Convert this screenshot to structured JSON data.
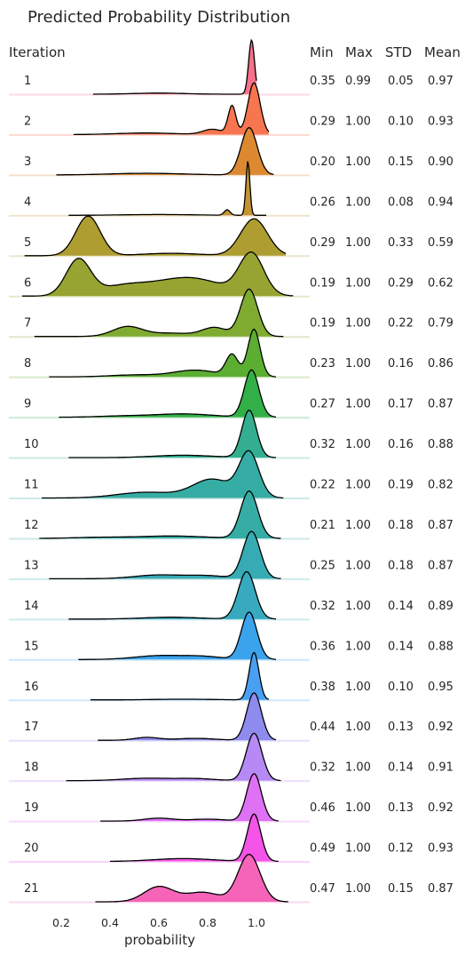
{
  "chart_data": {
    "type": "ridgeline",
    "title": "Predicted Probability Distribution",
    "xlabel": "probability",
    "xlim": [
      0.05,
      1.15
    ],
    "xticks": [
      "0.2",
      "0.4",
      "0.6",
      "0.8",
      "1.0"
    ],
    "xtick_values": [
      0.2,
      0.4,
      0.6,
      0.8,
      1.0
    ],
    "row_header": "Iteration",
    "stat_headers": [
      "Min",
      "Max",
      "STD",
      "Mean"
    ],
    "series": [
      {
        "name": "1",
        "color": "#f77189",
        "min": "0.35",
        "max": "0.99",
        "std": "0.05",
        "mean": "0.97",
        "range": [
          0.33,
          1.0
        ],
        "peak": 0.98,
        "comps": [
          [
            0.98,
            0.012,
            1.0
          ],
          [
            0.6,
            0.1,
            0.02
          ]
        ]
      },
      {
        "name": "2",
        "color": "#f7754f",
        "min": "0.29",
        "max": "1.00",
        "std": "0.10",
        "mean": "0.93",
        "range": [
          0.25,
          1.05
        ],
        "peak": 0.94,
        "comps": [
          [
            0.99,
            0.025,
            1.0
          ],
          [
            0.9,
            0.016,
            0.55
          ],
          [
            0.82,
            0.04,
            0.1
          ],
          [
            0.55,
            0.12,
            0.03
          ]
        ]
      },
      {
        "name": "3",
        "color": "#dc8932",
        "min": "0.20",
        "max": "1.00",
        "std": "0.15",
        "mean": "0.90",
        "range": [
          0.18,
          1.07
        ],
        "peak": 0.86,
        "comps": [
          [
            0.97,
            0.033,
            1.0
          ],
          [
            0.55,
            0.15,
            0.035
          ]
        ]
      },
      {
        "name": "4",
        "color": "#c39532",
        "min": "0.26",
        "max": "1.00",
        "std": "0.08",
        "mean": "0.94",
        "range": [
          0.23,
          1.04
        ],
        "peak": 0.98,
        "comps": [
          [
            0.965,
            0.008,
            1.0
          ],
          [
            0.88,
            0.012,
            0.1
          ],
          [
            0.6,
            0.15,
            0.015
          ]
        ]
      },
      {
        "name": "5",
        "color": "#ae9d31",
        "min": "0.29",
        "max": "1.00",
        "std": "0.33",
        "mean": "0.59",
        "range": [
          0.05,
          1.12
        ],
        "peak": 0.72,
        "comps": [
          [
            0.31,
            0.05,
            1.0
          ],
          [
            0.99,
            0.055,
            0.93
          ],
          [
            0.65,
            0.12,
            0.06
          ]
        ]
      },
      {
        "name": "6",
        "color": "#97a431",
        "min": "0.19",
        "max": "1.00",
        "std": "0.29",
        "mean": "0.62",
        "range": [
          0.04,
          1.15
        ],
        "peak": 0.8,
        "comps": [
          [
            0.27,
            0.05,
            0.88
          ],
          [
            0.98,
            0.05,
            1.0
          ],
          [
            0.72,
            0.14,
            0.45
          ],
          [
            0.45,
            0.1,
            0.22
          ]
        ]
      },
      {
        "name": "7",
        "color": "#7fab31",
        "min": "0.19",
        "max": "1.00",
        "std": "0.22",
        "mean": "0.79",
        "range": [
          0.09,
          1.11
        ],
        "peak": 0.86,
        "comps": [
          [
            0.97,
            0.035,
            1.0
          ],
          [
            0.47,
            0.06,
            0.2
          ],
          [
            0.83,
            0.05,
            0.18
          ],
          [
            0.65,
            0.1,
            0.07
          ]
        ]
      },
      {
        "name": "8",
        "color": "#5cae32",
        "min": "0.23",
        "max": "1.00",
        "std": "0.16",
        "mean": "0.86",
        "range": [
          0.15,
          1.08
        ],
        "peak": 0.86,
        "comps": [
          [
            0.99,
            0.025,
            1.0
          ],
          [
            0.9,
            0.025,
            0.45
          ],
          [
            0.75,
            0.09,
            0.14
          ],
          [
            0.5,
            0.1,
            0.04
          ]
        ]
      },
      {
        "name": "9",
        "color": "#32b047",
        "min": "0.27",
        "max": "1.00",
        "std": "0.17",
        "mean": "0.87",
        "range": [
          0.19,
          1.08
        ],
        "peak": 0.86,
        "comps": [
          [
            0.98,
            0.03,
            1.0
          ],
          [
            0.7,
            0.12,
            0.07
          ],
          [
            0.45,
            0.1,
            0.025
          ]
        ]
      },
      {
        "name": "10",
        "color": "#34ae91",
        "min": "0.32",
        "max": "1.00",
        "std": "0.16",
        "mean": "0.88",
        "range": [
          0.23,
          1.08
        ],
        "peak": 0.86,
        "comps": [
          [
            0.97,
            0.03,
            1.0
          ],
          [
            0.7,
            0.12,
            0.05
          ]
        ]
      },
      {
        "name": "11",
        "color": "#36ada4",
        "min": "0.22",
        "max": "1.00",
        "std": "0.19",
        "mean": "0.82",
        "range": [
          0.12,
          1.11
        ],
        "peak": 0.86,
        "comps": [
          [
            0.97,
            0.04,
            1.0
          ],
          [
            0.82,
            0.08,
            0.42
          ],
          [
            0.55,
            0.12,
            0.13
          ]
        ]
      },
      {
        "name": "12",
        "color": "#36ada4",
        "min": "0.21",
        "max": "1.00",
        "std": "0.18",
        "mean": "0.87",
        "range": [
          0.11,
          1.1
        ],
        "peak": 0.86,
        "comps": [
          [
            0.97,
            0.035,
            1.0
          ],
          [
            0.65,
            0.14,
            0.05
          ],
          [
            0.35,
            0.1,
            0.02
          ]
        ]
      },
      {
        "name": "13",
        "color": "#37abb4",
        "min": "0.25",
        "max": "1.00",
        "std": "0.18",
        "mean": "0.87",
        "range": [
          0.15,
          1.1
        ],
        "peak": 0.86,
        "comps": [
          [
            0.98,
            0.035,
            1.0
          ],
          [
            0.6,
            0.1,
            0.08
          ],
          [
            0.8,
            0.08,
            0.06
          ]
        ]
      },
      {
        "name": "14",
        "color": "#38aabf",
        "min": "0.32",
        "max": "1.00",
        "std": "0.14",
        "mean": "0.89",
        "range": [
          0.23,
          1.08
        ],
        "peak": 0.86,
        "comps": [
          [
            0.96,
            0.035,
            1.0
          ],
          [
            0.65,
            0.12,
            0.04
          ]
        ]
      },
      {
        "name": "15",
        "color": "#3ba3ec",
        "min": "0.36",
        "max": "1.00",
        "std": "0.14",
        "mean": "0.88",
        "range": [
          0.27,
          1.08
        ],
        "peak": 0.86,
        "comps": [
          [
            0.97,
            0.032,
            1.0
          ],
          [
            0.6,
            0.1,
            0.08
          ],
          [
            0.78,
            0.08,
            0.06
          ]
        ]
      },
      {
        "name": "16",
        "color": "#4a9ff2",
        "min": "0.38",
        "max": "1.00",
        "std": "0.10",
        "mean": "0.95",
        "range": [
          0.32,
          1.05
        ],
        "peak": 0.86,
        "comps": [
          [
            0.99,
            0.02,
            1.0
          ],
          [
            0.7,
            0.12,
            0.015
          ]
        ]
      },
      {
        "name": "17",
        "color": "#8f8bee",
        "min": "0.44",
        "max": "1.00",
        "std": "0.13",
        "mean": "0.92",
        "range": [
          0.35,
          1.08
        ],
        "peak": 0.86,
        "comps": [
          [
            0.99,
            0.03,
            1.0
          ],
          [
            0.55,
            0.05,
            0.06
          ],
          [
            0.75,
            0.08,
            0.04
          ]
        ]
      },
      {
        "name": "18",
        "color": "#b689f4",
        "min": "0.32",
        "max": "1.00",
        "std": "0.14",
        "mean": "0.91",
        "range": [
          0.22,
          1.1
        ],
        "peak": 0.86,
        "comps": [
          [
            0.99,
            0.032,
            1.0
          ],
          [
            0.55,
            0.1,
            0.05
          ],
          [
            0.75,
            0.08,
            0.04
          ]
        ]
      },
      {
        "name": "19",
        "color": "#df71f4",
        "min": "0.46",
        "max": "1.00",
        "std": "0.13",
        "mean": "0.92",
        "range": [
          0.36,
          1.09
        ],
        "peak": 0.86,
        "comps": [
          [
            0.99,
            0.03,
            1.0
          ],
          [
            0.6,
            0.06,
            0.06
          ],
          [
            0.8,
            0.07,
            0.04
          ]
        ]
      },
      {
        "name": "20",
        "color": "#f554e8",
        "min": "0.49",
        "max": "1.00",
        "std": "0.12",
        "mean": "0.93",
        "range": [
          0.4,
          1.09
        ],
        "peak": 0.86,
        "comps": [
          [
            0.99,
            0.028,
            1.0
          ],
          [
            0.7,
            0.12,
            0.06
          ]
        ]
      },
      {
        "name": "21",
        "color": "#f564b9",
        "min": "0.47",
        "max": "1.00",
        "std": "0.15",
        "mean": "0.87",
        "range": [
          0.34,
          1.13
        ],
        "peak": 0.86,
        "comps": [
          [
            0.97,
            0.045,
            1.0
          ],
          [
            0.6,
            0.06,
            0.32
          ],
          [
            0.78,
            0.07,
            0.2
          ]
        ]
      }
    ]
  }
}
